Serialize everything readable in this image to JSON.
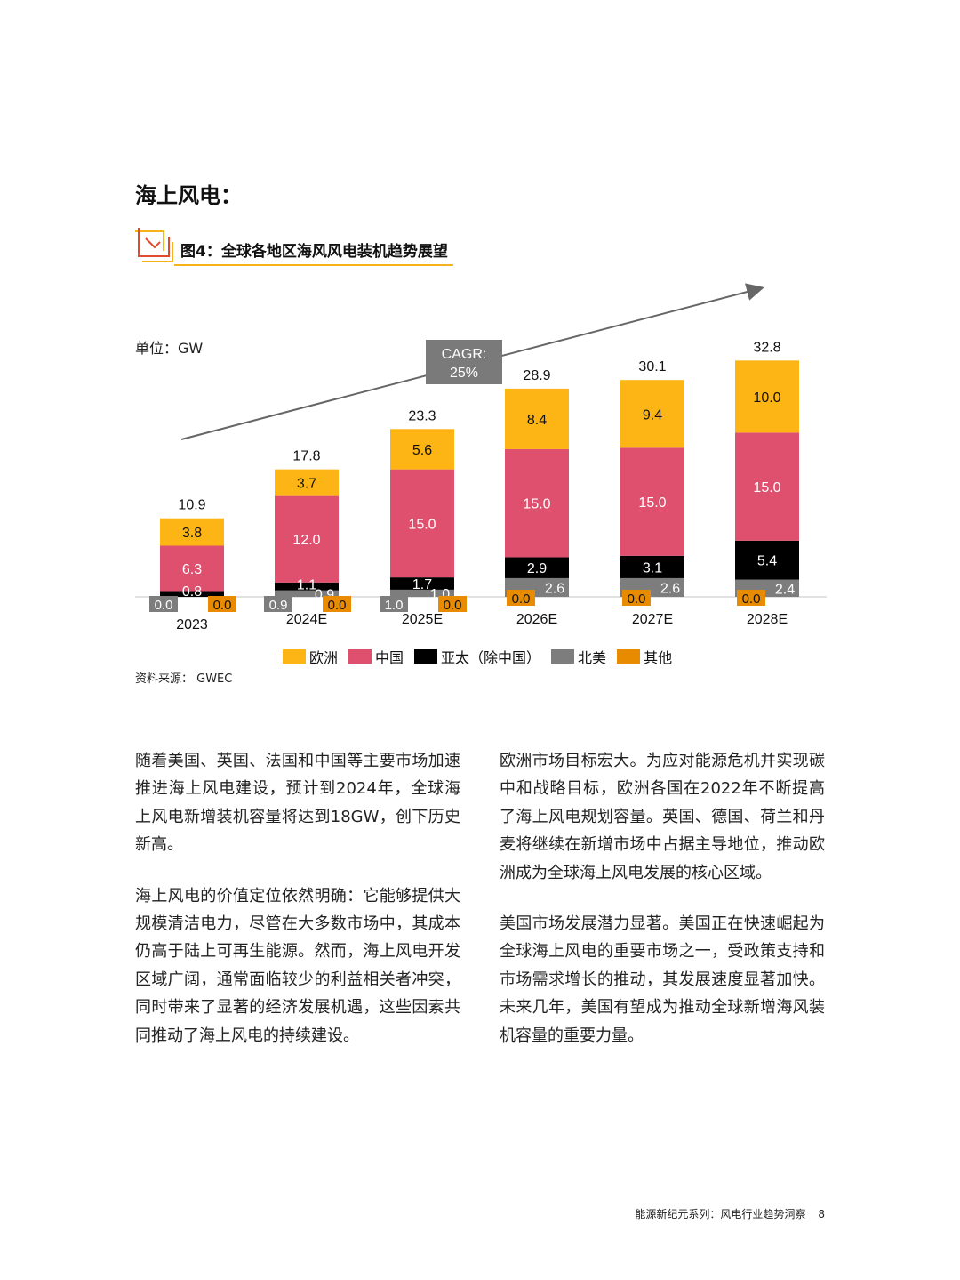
{
  "section_title": "海上风电：",
  "figure_title": "图4：全球各地区海风风电装机趋势展望",
  "unit": "单位：GW",
  "cagr": {
    "line1": "CAGR:",
    "line2": "25%"
  },
  "colors": {
    "europe": "#FDB515",
    "china": "#DE506E",
    "apac": "#000000",
    "na": "#7D7D7D",
    "other": "#E88B00"
  },
  "chart_data": {
    "type": "bar",
    "stacked": true,
    "categories": [
      "2023",
      "2024E",
      "2025E",
      "2026E",
      "2027E",
      "2028E"
    ],
    "series": [
      {
        "name": "欧洲",
        "values": [
          3.8,
          3.7,
          5.6,
          8.4,
          9.4,
          10.0
        ]
      },
      {
        "name": "中国",
        "values": [
          6.3,
          12.0,
          15.0,
          15.0,
          15.0,
          15.0
        ]
      },
      {
        "name": "亚太（除中国）",
        "values": [
          0.8,
          1.1,
          1.7,
          2.9,
          3.1,
          5.4
        ]
      },
      {
        "name": "北美",
        "values": [
          0.0,
          0.9,
          1.0,
          2.6,
          2.6,
          2.4
        ]
      },
      {
        "name": "其他",
        "values": [
          0.0,
          0.0,
          0.0,
          0.0,
          0.0,
          0.0
        ]
      }
    ],
    "totals": [
      "10.9",
      "17.8",
      "23.3",
      "28.9",
      "30.1",
      "32.8"
    ],
    "labels": {
      "europe": [
        "3.8",
        "3.7",
        "5.6",
        "8.4",
        "9.4",
        "10.0"
      ],
      "china": [
        "6.3",
        "12.0",
        "15.0",
        "15.0",
        "15.0",
        "15.0"
      ],
      "apac": [
        "0.8",
        "1.1",
        "1.7",
        "2.9",
        "3.1",
        "5.4"
      ],
      "na": [
        "0.0",
        "0.9",
        "1.0",
        "2.6",
        "2.6",
        "2.4"
      ],
      "other": [
        "0.0",
        "0.0",
        "0.0",
        "0.0",
        "0.0",
        "0.0"
      ]
    },
    "legend_position": "bottom"
  },
  "legend": [
    "欧洲",
    "中国",
    "亚太（除中国）",
    "北美",
    "其他"
  ],
  "source": "资料来源： GWEC",
  "paragraphs_left": [
    "随着美国、英国、法国和中国等主要市场加速推进海上风电建设，预计到2024年，全球海上风电新增装机容量将达到18GW，创下历史新高。",
    "海上风电的价值定位依然明确：它能够提供大规模清洁电力，尽管在大多数市场中，其成本仍高于陆上可再生能源。然而，海上风电开发区域广阔，通常面临较少的利益相关者冲突，同时带来了显著的经济发展机遇，这些因素共同推动了海上风电的持续建设。"
  ],
  "paragraphs_right": [
    "欧洲市场目标宏大。为应对能源危机并实现碳中和战略目标，欧洲各国在2022年不断提高了海上风电规划容量。英国、德国、荷兰和丹麦将继续在新增市场中占据主导地位，推动欧洲成为全球海上风电发展的核心区域。",
    "美国市场发展潜力显著。美国正在快速崛起为全球海上风电的重要市场之一，受政策支持和市场需求增长的推动，其发展速度显著加快。未来几年，美国有望成为推动全球新增海风装机容量的重要力量。"
  ],
  "footer": {
    "text": "能源新纪元系列：风电行业趋势洞察",
    "page": "8"
  }
}
